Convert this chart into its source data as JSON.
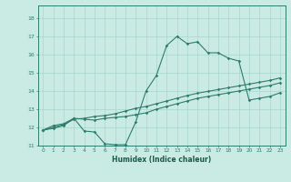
{
  "xlabel": "Humidex (Indice chaleur)",
  "bg_color": "#caeae4",
  "grid_color": "#a8d5cc",
  "line_color": "#2e7d6e",
  "xlim": [
    -0.5,
    23.5
  ],
  "ylim": [
    11.0,
    18.7
  ],
  "xticks": [
    0,
    1,
    2,
    3,
    4,
    5,
    6,
    7,
    8,
    9,
    10,
    11,
    12,
    13,
    14,
    15,
    16,
    17,
    18,
    19,
    20,
    21,
    22,
    23
  ],
  "yticks": [
    11,
    12,
    13,
    14,
    15,
    16,
    17,
    18
  ],
  "line1_x": [
    0,
    1,
    2,
    3,
    4,
    5,
    6,
    7,
    8,
    9,
    10,
    11,
    12,
    13,
    14,
    15,
    16,
    17,
    18,
    19,
    20,
    21,
    22,
    23
  ],
  "line1_y": [
    11.85,
    12.1,
    12.2,
    12.5,
    11.8,
    11.75,
    11.1,
    11.05,
    11.05,
    12.3,
    14.0,
    14.85,
    16.5,
    17.0,
    16.6,
    16.7,
    16.1,
    16.1,
    15.8,
    15.65,
    13.5,
    13.6,
    13.7,
    13.9
  ],
  "line2_x": [
    0,
    1,
    2,
    3,
    4,
    5,
    6,
    7,
    8,
    9,
    10,
    11,
    12,
    13,
    14,
    15,
    16,
    17,
    18,
    19,
    20,
    21,
    22,
    23
  ],
  "line2_y": [
    11.85,
    12.0,
    12.15,
    12.45,
    12.5,
    12.6,
    12.65,
    12.75,
    12.9,
    13.05,
    13.15,
    13.3,
    13.45,
    13.6,
    13.75,
    13.88,
    13.98,
    14.08,
    14.18,
    14.28,
    14.38,
    14.48,
    14.58,
    14.72
  ],
  "line3_x": [
    0,
    1,
    2,
    3,
    4,
    5,
    6,
    7,
    8,
    9,
    10,
    11,
    12,
    13,
    14,
    15,
    16,
    17,
    18,
    19,
    20,
    21,
    22,
    23
  ],
  "line3_y": [
    11.85,
    11.95,
    12.1,
    12.5,
    12.45,
    12.4,
    12.5,
    12.55,
    12.6,
    12.7,
    12.8,
    13.0,
    13.15,
    13.3,
    13.45,
    13.6,
    13.7,
    13.8,
    13.9,
    14.0,
    14.1,
    14.2,
    14.3,
    14.45
  ]
}
